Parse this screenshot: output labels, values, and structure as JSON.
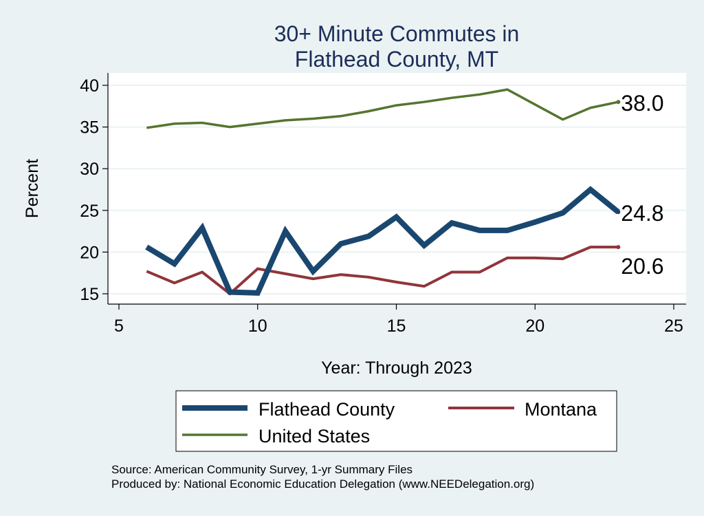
{
  "chart_data": {
    "type": "line",
    "title": [
      "30+ Minute Commutes in",
      "Flathead County, MT"
    ],
    "xlabel": "Year: Through 2023",
    "ylabel": "Percent",
    "xlim": [
      5,
      25
    ],
    "ylim": [
      15,
      40
    ],
    "xticks": [
      5,
      10,
      15,
      20,
      25
    ],
    "yticks": [
      15,
      20,
      25,
      30,
      35,
      40
    ],
    "grid": true,
    "legend_position": "bottom",
    "x": [
      6,
      7,
      8,
      9,
      10,
      11,
      12,
      13,
      14,
      15,
      16,
      17,
      18,
      19,
      20,
      21,
      22,
      23
    ],
    "series": [
      {
        "name": "Flathead County",
        "color": "#1a476f",
        "end_label": "24.8",
        "values": [
          20.6,
          18.6,
          22.9,
          15.2,
          15.1,
          22.5,
          17.7,
          21.0,
          21.9,
          24.2,
          20.8,
          23.5,
          22.6,
          22.6,
          23.6,
          24.7,
          27.5,
          24.8
        ]
      },
      {
        "name": "Montana",
        "color": "#90353b",
        "end_label": "20.6",
        "values": [
          17.7,
          16.3,
          17.6,
          15.0,
          18.0,
          17.4,
          16.8,
          17.3,
          17.0,
          16.4,
          15.9,
          17.6,
          17.6,
          19.3,
          19.3,
          19.2,
          20.6,
          20.6
        ]
      },
      {
        "name": "United States",
        "color": "#55752f",
        "end_label": "38.0",
        "values": [
          34.9,
          35.4,
          35.5,
          35.0,
          35.4,
          35.8,
          36.0,
          36.3,
          36.9,
          37.6,
          38.0,
          38.5,
          38.9,
          39.5,
          37.7,
          35.9,
          37.3,
          38.0
        ]
      }
    ]
  },
  "notes": {
    "source": "Source: American Community Survey, 1-yr Summary Files",
    "produced_by": "Produced by: National Economic Education Delegation (www.NEEDelegation.org)"
  }
}
